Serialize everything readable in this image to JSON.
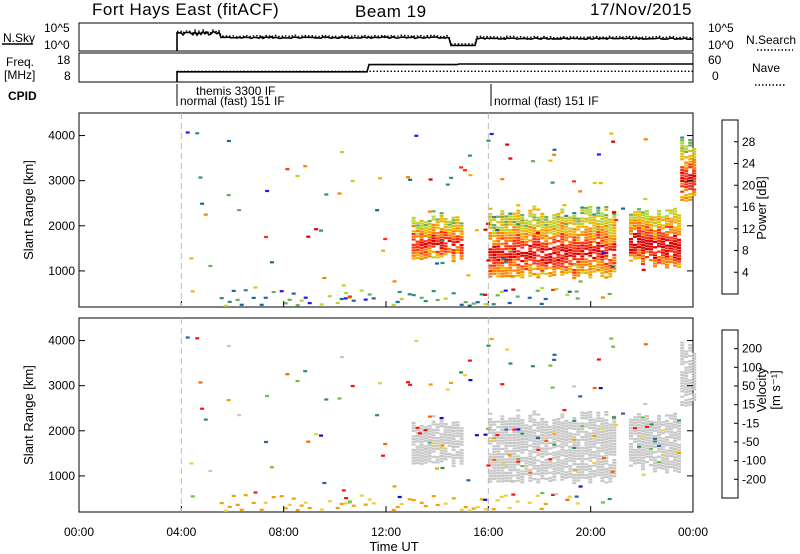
{
  "header": {
    "station": "Fort Hays East (fitACF)",
    "beam": "Beam 19",
    "date": "17/Nov/2015"
  },
  "noise_panel": {
    "left_label": "N.Sky",
    "right_label": "N.Search",
    "left_ticks": [
      "10^5",
      "10^0"
    ],
    "right_ticks": [
      "10^5",
      "10^0"
    ]
  },
  "freq_panel": {
    "left_label_line1": "Freq.",
    "left_label_line2": "[MHz]",
    "right_label": "Nave",
    "left_ticks": [
      "18",
      "8"
    ],
    "right_ticks": [
      "60",
      "0"
    ]
  },
  "cpid": {
    "label": "CPID",
    "entries": [
      {
        "text": "themis 3300 IF"
      },
      {
        "text": "normal (fast) 151 IF"
      },
      {
        "text": "normal (fast) 151 IF"
      }
    ]
  },
  "colors": {
    "ground_scatter": "#c8c8c8",
    "dashed_markers": "#bbbbbb",
    "power_colors": [
      "#1a1aff",
      "#1a6699",
      "#2b8f7a",
      "#6cae5a",
      "#b9d42e",
      "#f0b400",
      "#ff8000",
      "#ff3010",
      "#dd0000"
    ],
    "velocity_colors": [
      "#1010c0",
      "#3060a0",
      "#2f8f4f",
      "#70c040",
      "#c8c8c8",
      "#e8d040",
      "#f0a000",
      "#ff6000",
      "#ff1010"
    ]
  },
  "chart_data": [
    {
      "type": "heatmap",
      "name_panel": "power",
      "ylabel": "Slant Range [km]",
      "yticks": [
        "1000",
        "2000",
        "3000",
        "4000"
      ],
      "ylim": [
        200,
        4500
      ],
      "colorbar_label": "Power [dB]",
      "colorbar_ticks": [
        "28",
        "24",
        "20",
        "16",
        "12",
        "8",
        "4"
      ],
      "colorbar_range": [
        0,
        30
      ],
      "bands": [
        {
          "x": [
            "13:00",
            "15:00"
          ],
          "range_km": [
            1300,
            2400
          ],
          "db": 20
        },
        {
          "x": [
            "16:00",
            "21:00"
          ],
          "range_km": [
            900,
            2500
          ],
          "db": 20
        },
        {
          "x": [
            "21:30",
            "23:30"
          ],
          "range_km": [
            1100,
            2500
          ],
          "db": 22
        },
        {
          "x": [
            "23:30",
            "24:00"
          ],
          "range_km": [
            2600,
            4000
          ],
          "db": 20
        }
      ]
    },
    {
      "type": "heatmap",
      "name_panel": "velocity",
      "ylabel": "Slant Range [km]",
      "yticks": [
        "1000",
        "2000",
        "3000",
        "4000"
      ],
      "ylim": [
        200,
        4500
      ],
      "colorbar_label_main": "Velocity",
      "colorbar_label_unit": "[m s⁻¹]",
      "colorbar_ticks": [
        "200",
        "100",
        "50",
        "15",
        "-15",
        "-50",
        "-100",
        "-200"
      ],
      "colorbar_range": [
        -250,
        250
      ],
      "xlabel": "Time UT",
      "xticks": [
        "00:00",
        "04:00",
        "08:00",
        "12:00",
        "16:00",
        "20:00",
        "00:00"
      ],
      "xlim": [
        0,
        24
      ],
      "markers_hours": [
        4.0,
        16.0
      ]
    }
  ]
}
